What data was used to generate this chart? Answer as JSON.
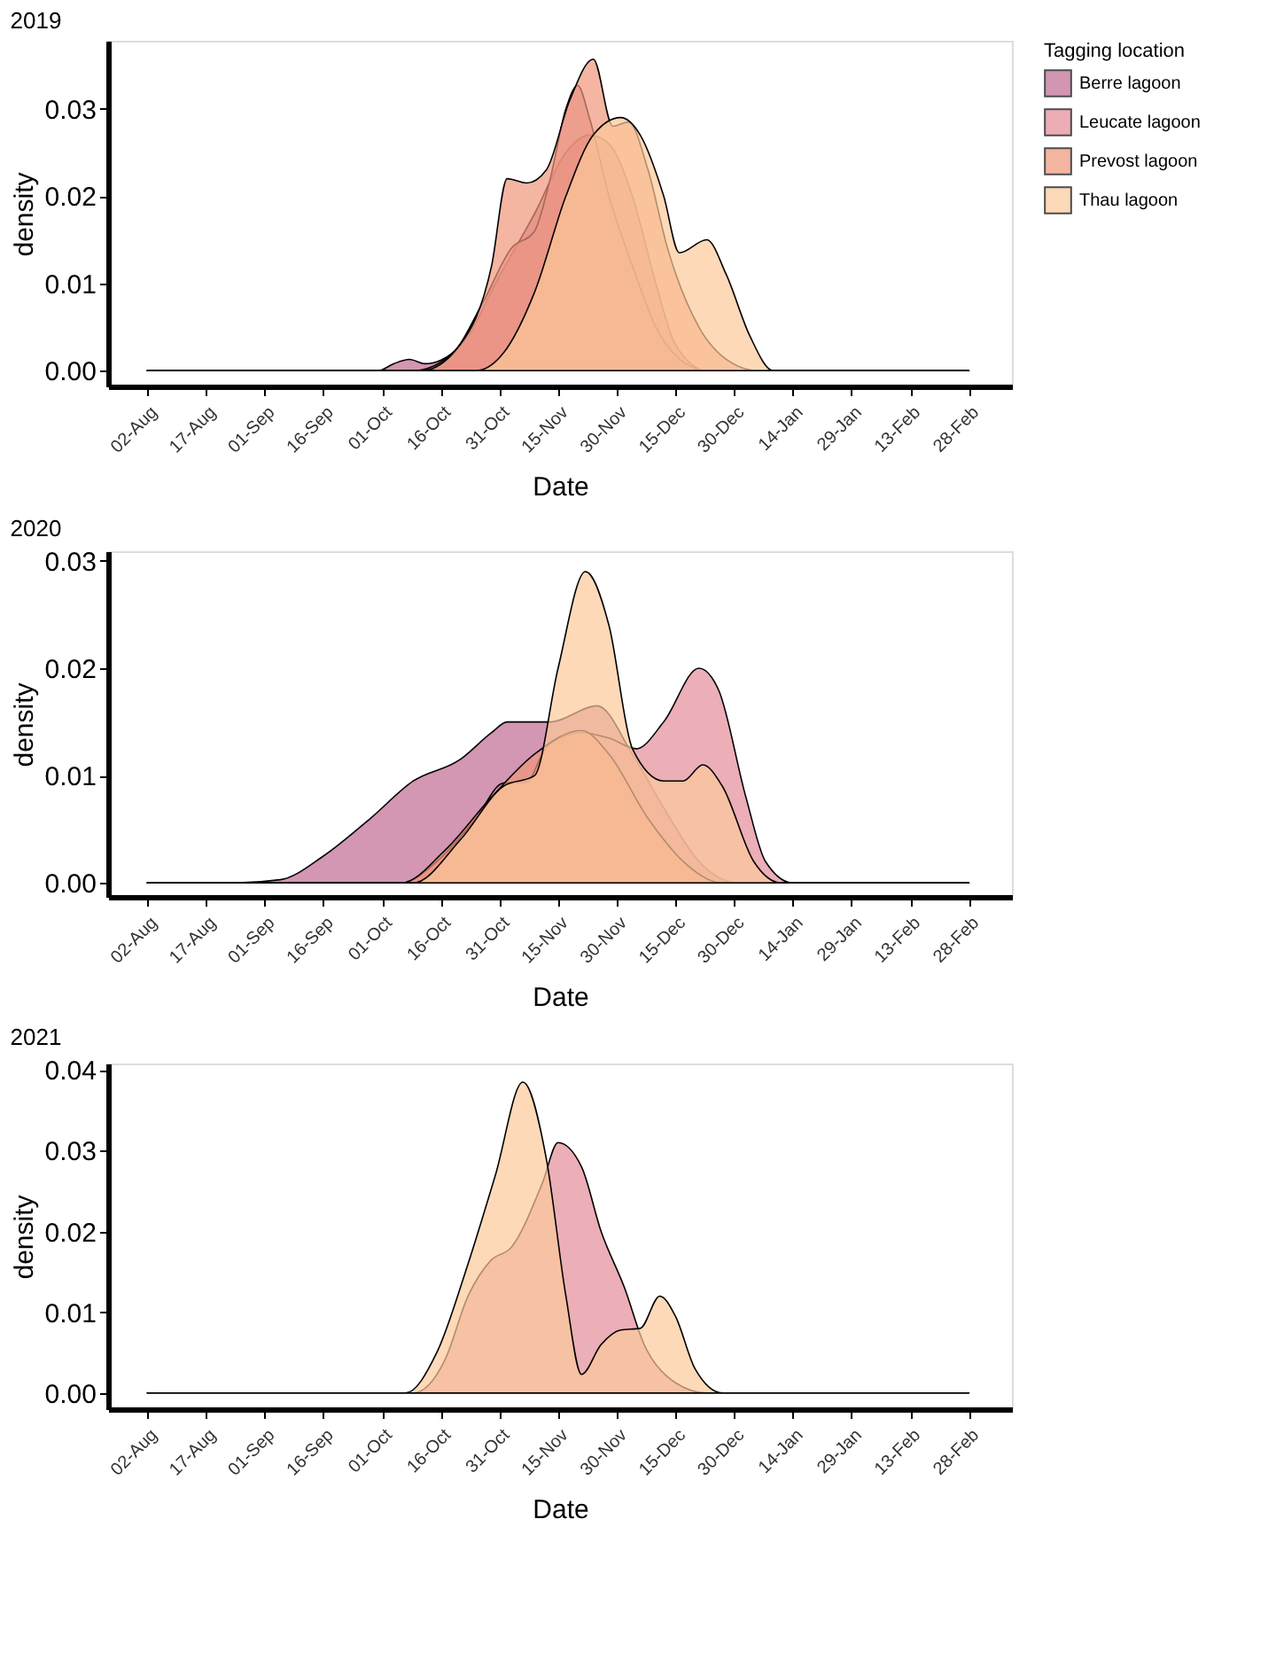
{
  "chart_data": [
    {
      "type": "area",
      "title": "2019",
      "xlabel": "Date",
      "ylabel": "density",
      "legend": "right",
      "legend_title": "Tagging location",
      "xlim": [
        "2019-07-23",
        "2020-03-10"
      ],
      "ylim": [
        -0.0018,
        0.0378
      ],
      "xticks": [
        {
          "value": "2019-08-02",
          "label": "02-Aug"
        },
        {
          "value": "2019-08-17",
          "label": "17-Aug"
        },
        {
          "value": "2019-09-01",
          "label": "01-Sep"
        },
        {
          "value": "2019-09-16",
          "label": "16-Sep"
        },
        {
          "value": "2019-10-01",
          "label": "01-Oct"
        },
        {
          "value": "2019-10-16",
          "label": "16-Oct"
        },
        {
          "value": "2019-10-31",
          "label": "31-Oct"
        },
        {
          "value": "2019-11-15",
          "label": "15-Nov"
        },
        {
          "value": "2019-11-30",
          "label": "30-Nov"
        },
        {
          "value": "2019-12-15",
          "label": "15-Dec"
        },
        {
          "value": "2019-12-30",
          "label": "30-Dec"
        },
        {
          "value": "2020-01-14",
          "label": "14-Jan"
        },
        {
          "value": "2020-01-29",
          "label": "29-Jan"
        },
        {
          "value": "2020-02-13",
          "label": "13-Feb"
        },
        {
          "value": "2020-02-28",
          "label": "28-Feb"
        }
      ],
      "yticks": [
        {
          "value": 0,
          "label": "0.00"
        },
        {
          "value": 0.01,
          "label": "0.01"
        },
        {
          "value": 0.02,
          "label": "0.02"
        },
        {
          "value": 0.03,
          "label": "0.03"
        }
      ],
      "series": [
        {
          "name": "Berre lagoon",
          "color": "#c06a93",
          "x": [
            "2019-08-02",
            "2019-09-30",
            "2019-10-04",
            "2019-10-08",
            "2019-10-12",
            "2019-10-16",
            "2019-10-23",
            "2019-10-30",
            "2019-11-09",
            "2019-11-17",
            "2019-11-23",
            "2019-11-28",
            "2019-12-04",
            "2019-12-10",
            "2019-12-15",
            "2019-12-23",
            "2020-02-28"
          ],
          "values": [
            0,
            0,
            0.0008,
            0.0013,
            0.0008,
            0.0012,
            0.004,
            0.01,
            0.018,
            0.025,
            0.027,
            0.026,
            0.02,
            0.01,
            0.003,
            0,
            0
          ]
        },
        {
          "name": "Leucate lagoon",
          "color": "#e48b99",
          "x": [
            "2019-08-02",
            "2019-10-09",
            "2019-10-19",
            "2019-10-27",
            "2019-11-03",
            "2019-11-09",
            "2019-11-13",
            "2019-11-17",
            "2019-11-20",
            "2019-11-23",
            "2019-11-28",
            "2019-12-04",
            "2019-12-10",
            "2019-12-17",
            "2019-12-23",
            "2020-02-28"
          ],
          "values": [
            0,
            0,
            0.002,
            0.008,
            0.014,
            0.016,
            0.022,
            0.03,
            0.0327,
            0.029,
            0.02,
            0.012,
            0.005,
            0.001,
            0,
            0
          ]
        },
        {
          "name": "Prevost lagoon",
          "color": "#f0977a",
          "x": [
            "2019-08-02",
            "2019-10-11",
            "2019-10-21",
            "2019-10-29",
            "2019-11-02",
            "2019-11-07",
            "2019-11-12",
            "2019-11-18",
            "2019-11-24",
            "2019-11-29",
            "2019-12-03",
            "2019-12-08",
            "2019-12-13",
            "2019-12-21",
            "2019-12-29",
            "2020-01-05",
            "2020-02-28"
          ],
          "values": [
            0,
            0,
            0.003,
            0.012,
            0.022,
            0.0215,
            0.023,
            0.031,
            0.0357,
            0.028,
            0.0285,
            0.023,
            0.014,
            0.005,
            0.001,
            0,
            0
          ]
        },
        {
          "name": "Thau lagoon",
          "color": "#fcc99a",
          "x": [
            "2019-08-02",
            "2019-10-25",
            "2019-11-01",
            "2019-11-09",
            "2019-11-17",
            "2019-11-24",
            "2019-12-01",
            "2019-12-06",
            "2019-12-12",
            "2019-12-16",
            "2019-12-23",
            "2019-12-28",
            "2020-01-03",
            "2020-01-09",
            "2020-02-28"
          ],
          "values": [
            0,
            0,
            0.002,
            0.009,
            0.02,
            0.027,
            0.029,
            0.027,
            0.02,
            0.0135,
            0.015,
            0.011,
            0.004,
            0,
            0
          ]
        }
      ]
    },
    {
      "type": "area",
      "title": "2020",
      "xlabel": "Date",
      "ylabel": "density",
      "xlim": [
        "2020-07-23",
        "2021-03-11"
      ],
      "ylim": [
        -0.0013,
        0.0309
      ],
      "xticks": [
        {
          "value": "2020-08-02",
          "label": "02-Aug"
        },
        {
          "value": "2020-08-17",
          "label": "17-Aug"
        },
        {
          "value": "2020-09-01",
          "label": "01-Sep"
        },
        {
          "value": "2020-09-16",
          "label": "16-Sep"
        },
        {
          "value": "2020-10-01",
          "label": "01-Oct"
        },
        {
          "value": "2020-10-16",
          "label": "16-Oct"
        },
        {
          "value": "2020-10-31",
          "label": "31-Oct"
        },
        {
          "value": "2020-11-15",
          "label": "15-Nov"
        },
        {
          "value": "2020-11-30",
          "label": "30-Nov"
        },
        {
          "value": "2020-12-15",
          "label": "15-Dec"
        },
        {
          "value": "2020-12-30",
          "label": "30-Dec"
        },
        {
          "value": "2021-01-14",
          "label": "14-Jan"
        },
        {
          "value": "2021-01-29",
          "label": "29-Jan"
        },
        {
          "value": "2021-02-13",
          "label": "13-Feb"
        },
        {
          "value": "2021-02-28",
          "label": "28-Feb"
        }
      ],
      "yticks": [
        {
          "value": 0,
          "label": "0.00"
        },
        {
          "value": 0.01,
          "label": "0.01"
        },
        {
          "value": 0.02,
          "label": "0.02"
        },
        {
          "value": 0.03,
          "label": "0.03"
        }
      ],
      "series": [
        {
          "color": "#c06a93",
          "x": [
            "2020-08-02",
            "2020-08-24",
            "2020-09-05",
            "2020-09-16",
            "2020-09-28",
            "2020-10-09",
            "2020-10-21",
            "2020-10-29",
            "2020-11-02",
            "2020-11-13",
            "2020-11-25",
            "2020-12-04",
            "2020-12-12",
            "2020-12-21",
            "2020-12-31",
            "2021-02-28"
          ],
          "values": [
            0,
            0,
            0.0003,
            0.0025,
            0.006,
            0.0095,
            0.0115,
            0.014,
            0.015,
            0.015,
            0.0165,
            0.012,
            0.007,
            0.002,
            0,
            0
          ]
        },
        {
          "color": "#e48b99",
          "x": [
            "2020-08-02",
            "2020-10-06",
            "2020-10-15",
            "2020-10-25",
            "2020-11-01",
            "2020-11-07",
            "2020-11-11",
            "2020-11-13",
            "2020-11-21",
            "2020-11-28",
            "2020-12-05",
            "2020-12-12",
            "2020-12-21",
            "2020-12-26",
            "2021-01-02",
            "2021-01-07",
            "2021-01-14",
            "2021-02-28"
          ],
          "values": [
            0,
            0,
            0.002,
            0.006,
            0.0093,
            0.0094,
            0.012,
            0.013,
            0.014,
            0.0135,
            0.0125,
            0.015,
            0.02,
            0.018,
            0.008,
            0.002,
            0,
            0
          ]
        },
        {
          "color": "#f0977a",
          "x": [
            "2020-08-02",
            "2020-10-06",
            "2020-10-17",
            "2020-10-29",
            "2020-11-09",
            "2020-11-21",
            "2020-11-28",
            "2020-12-08",
            "2020-12-17",
            "2020-12-27",
            "2021-02-28"
          ],
          "values": [
            0,
            0,
            0.003,
            0.008,
            0.012,
            0.0142,
            0.012,
            0.006,
            0.002,
            0,
            0
          ]
        },
        {
          "color": "#fcc99a",
          "x": [
            "2020-08-02",
            "2020-10-09",
            "2020-10-21",
            "2020-11-01",
            "2020-11-09",
            "2020-11-15",
            "2020-11-22",
            "2020-11-28",
            "2020-12-04",
            "2020-12-12",
            "2020-12-17",
            "2020-12-22",
            "2020-12-27",
            "2021-01-04",
            "2021-01-11",
            "2021-02-28"
          ],
          "values": [
            0,
            0,
            0.004,
            0.009,
            0.01,
            0.02,
            0.029,
            0.024,
            0.0125,
            0.0095,
            0.0095,
            0.011,
            0.009,
            0.002,
            0,
            0
          ]
        }
      ]
    },
    {
      "type": "area",
      "title": "2021",
      "xlabel": "Date",
      "ylabel": "density",
      "xlim": [
        "2021-07-23",
        "2022-03-11"
      ],
      "ylim": [
        -0.002,
        0.0408
      ],
      "xticks": [
        {
          "value": "2021-08-02",
          "label": "02-Aug"
        },
        {
          "value": "2021-08-17",
          "label": "17-Aug"
        },
        {
          "value": "2021-09-01",
          "label": "01-Sep"
        },
        {
          "value": "2021-09-16",
          "label": "16-Sep"
        },
        {
          "value": "2021-10-01",
          "label": "01-Oct"
        },
        {
          "value": "2021-10-16",
          "label": "16-Oct"
        },
        {
          "value": "2021-10-31",
          "label": "31-Oct"
        },
        {
          "value": "2021-11-15",
          "label": "15-Nov"
        },
        {
          "value": "2021-11-30",
          "label": "30-Nov"
        },
        {
          "value": "2021-12-15",
          "label": "15-Dec"
        },
        {
          "value": "2021-12-30",
          "label": "30-Dec"
        },
        {
          "value": "2022-01-14",
          "label": "14-Jan"
        },
        {
          "value": "2022-01-29",
          "label": "29-Jan"
        },
        {
          "value": "2022-02-13",
          "label": "13-Feb"
        },
        {
          "value": "2022-02-28",
          "label": "28-Feb"
        }
      ],
      "yticks": [
        {
          "value": 0,
          "label": "0.00"
        },
        {
          "value": 0.01,
          "label": "0.01"
        },
        {
          "value": 0.02,
          "label": "0.02"
        },
        {
          "value": 0.03,
          "label": "0.03"
        },
        {
          "value": 0.04,
          "label": "0.04"
        }
      ],
      "series": [
        {
          "color": "#e48b99",
          "x": [
            "2021-08-02",
            "2021-10-09",
            "2021-10-17",
            "2021-10-23",
            "2021-10-29",
            "2021-11-03",
            "2021-11-11",
            "2021-11-15",
            "2021-11-21",
            "2021-11-26",
            "2021-12-02",
            "2021-12-07",
            "2021-12-13",
            "2021-12-23",
            "2022-02-28"
          ],
          "values": [
            0,
            0,
            0.004,
            0.012,
            0.0165,
            0.018,
            0.026,
            0.031,
            0.028,
            0.02,
            0.013,
            0.006,
            0.002,
            0,
            0
          ]
        },
        {
          "color": "#fcc99a",
          "x": [
            "2021-08-02",
            "2021-10-07",
            "2021-10-15",
            "2021-10-23",
            "2021-10-30",
            "2021-11-06",
            "2021-11-12",
            "2021-11-17",
            "2021-11-21",
            "2021-11-26",
            "2021-12-01",
            "2021-12-06",
            "2021-12-11",
            "2021-12-15",
            "2021-12-20",
            "2021-12-27",
            "2022-02-28"
          ],
          "values": [
            0,
            0,
            0.005,
            0.016,
            0.027,
            0.0385,
            0.029,
            0.012,
            0.0023,
            0.006,
            0.0078,
            0.008,
            0.012,
            0.0095,
            0.003,
            0,
            0
          ]
        }
      ]
    }
  ]
}
